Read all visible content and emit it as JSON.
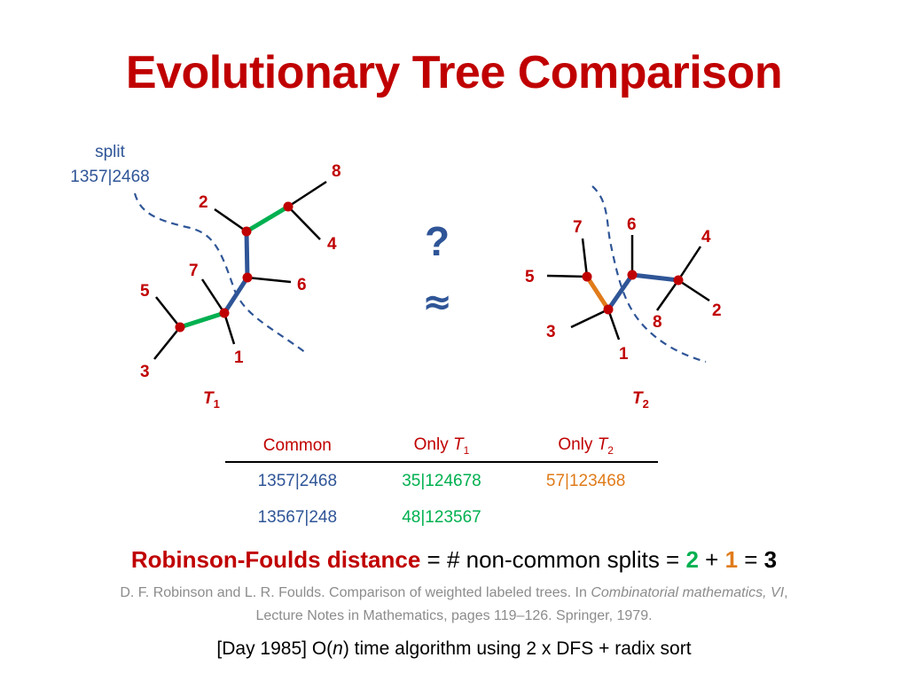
{
  "title": "Evolutionary Tree Comparison",
  "split_label": {
    "line1": "split",
    "line2": "1357|2468"
  },
  "tree1": {
    "name": "T",
    "sub": "1",
    "leaves": {
      "l1": "1",
      "l2": "2",
      "l3": "3",
      "l4": "4",
      "l5": "5",
      "l6": "6",
      "l7": "7",
      "l8": "8"
    }
  },
  "tree2": {
    "name": "T",
    "sub": "2",
    "leaves": {
      "l1": "1",
      "l2": "2",
      "l3": "3",
      "l4": "4",
      "l5": "5",
      "l6": "6",
      "l7": "7",
      "l8": "8"
    }
  },
  "compare": {
    "question": "?",
    "approx": "≈"
  },
  "table": {
    "headers": {
      "common": "Common",
      "only_t1": "Only ",
      "only_t2": "Only ",
      "t": "T",
      "s1": "1",
      "s2": "2"
    },
    "rows": [
      {
        "common": "1357|2468",
        "only_t1": "35|124678",
        "only_t2": "57|123468"
      },
      {
        "common": "13567|248",
        "only_t1": "48|123567",
        "only_t2": ""
      }
    ]
  },
  "rf": {
    "name": "Robinson-Foulds distance",
    "eq": " = # non-common splits = ",
    "a": "2",
    "plus": " + ",
    "b": "1",
    "eq2": " = ",
    "total": "3"
  },
  "reference": {
    "part1": "D. F. Robinson and L. R. Foulds. Comparison of weighted labeled trees. In ",
    "book": "Combinatorial mathematics, VI",
    "part2": ", Lecture Notes in Mathematics, pages 119–126. Springer, 1979."
  },
  "day": {
    "pre": "[Day 1985]  O(",
    "n": "n",
    "post": ") time algorithm using 2 x DFS + radix sort"
  },
  "colors": {
    "red": "#c00000",
    "blue": "#2f5597",
    "green": "#00b050",
    "orange": "#e07b1a",
    "gray": "#8c8c8c"
  }
}
